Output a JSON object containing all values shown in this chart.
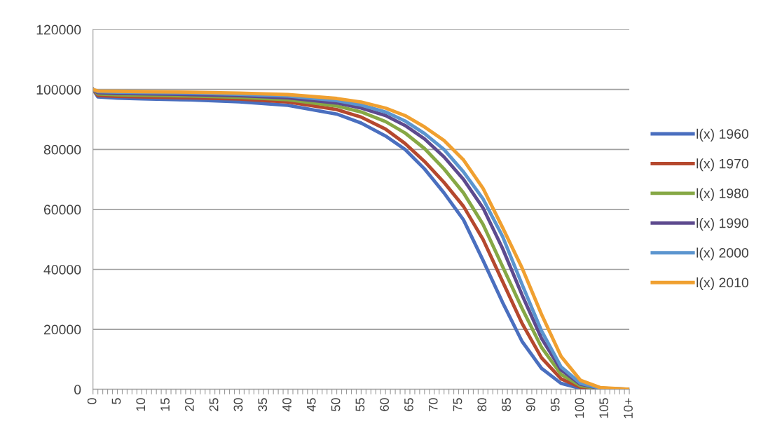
{
  "chart_data": {
    "type": "line",
    "xlim": [
      0,
      110
    ],
    "ylim": [
      0,
      120000
    ],
    "yticks": [
      0,
      20000,
      40000,
      60000,
      80000,
      100000,
      120000
    ],
    "xticks": [
      0,
      {
        "value": 1,
        "label": null
      },
      {
        "value": 2,
        "label": null
      },
      {
        "value": 3,
        "label": null
      },
      {
        "value": 4,
        "label": null
      },
      5,
      {
        "value": 6,
        "label": null
      },
      {
        "value": 7,
        "label": null
      },
      {
        "value": 8,
        "label": null
      },
      {
        "value": 9,
        "label": null
      },
      10,
      {
        "value": 11,
        "label": null
      },
      {
        "value": 12,
        "label": null
      },
      {
        "value": 13,
        "label": null
      },
      {
        "value": 14,
        "label": null
      },
      15,
      {
        "value": 16,
        "label": null
      },
      {
        "value": 17,
        "label": null
      },
      {
        "value": 18,
        "label": null
      },
      {
        "value": 19,
        "label": null
      },
      20,
      {
        "value": 21,
        "label": null
      },
      {
        "value": 22,
        "label": null
      },
      {
        "value": 23,
        "label": null
      },
      {
        "value": 24,
        "label": null
      },
      25,
      {
        "value": 26,
        "label": null
      },
      {
        "value": 27,
        "label": null
      },
      {
        "value": 28,
        "label": null
      },
      {
        "value": 29,
        "label": null
      },
      30,
      {
        "value": 31,
        "label": null
      },
      {
        "value": 32,
        "label": null
      },
      {
        "value": 33,
        "label": null
      },
      {
        "value": 34,
        "label": null
      },
      35,
      {
        "value": 36,
        "label": null
      },
      {
        "value": 37,
        "label": null
      },
      {
        "value": 38,
        "label": null
      },
      {
        "value": 39,
        "label": null
      },
      40,
      {
        "value": 41,
        "label": null
      },
      {
        "value": 42,
        "label": null
      },
      {
        "value": 43,
        "label": null
      },
      {
        "value": 44,
        "label": null
      },
      45,
      {
        "value": 46,
        "label": null
      },
      {
        "value": 47,
        "label": null
      },
      {
        "value": 48,
        "label": null
      },
      {
        "value": 49,
        "label": null
      },
      50,
      {
        "value": 51,
        "label": null
      },
      {
        "value": 52,
        "label": null
      },
      {
        "value": 53,
        "label": null
      },
      {
        "value": 54,
        "label": null
      },
      55,
      {
        "value": 56,
        "label": null
      },
      {
        "value": 57,
        "label": null
      },
      {
        "value": 58,
        "label": null
      },
      {
        "value": 59,
        "label": null
      },
      60,
      {
        "value": 61,
        "label": null
      },
      {
        "value": 62,
        "label": null
      },
      {
        "value": 63,
        "label": null
      },
      {
        "value": 64,
        "label": null
      },
      65,
      {
        "value": 66,
        "label": null
      },
      {
        "value": 67,
        "label": null
      },
      {
        "value": 68,
        "label": null
      },
      {
        "value": 69,
        "label": null
      },
      70,
      {
        "value": 71,
        "label": null
      },
      {
        "value": 72,
        "label": null
      },
      {
        "value": 73,
        "label": null
      },
      {
        "value": 74,
        "label": null
      },
      75,
      {
        "value": 76,
        "label": null
      },
      {
        "value": 77,
        "label": null
      },
      {
        "value": 78,
        "label": null
      },
      {
        "value": 79,
        "label": null
      },
      80,
      {
        "value": 81,
        "label": null
      },
      {
        "value": 82,
        "label": null
      },
      {
        "value": 83,
        "label": null
      },
      {
        "value": 84,
        "label": null
      },
      85,
      {
        "value": 86,
        "label": null
      },
      {
        "value": 87,
        "label": null
      },
      {
        "value": 88,
        "label": null
      },
      {
        "value": 89,
        "label": null
      },
      90,
      {
        "value": 91,
        "label": null
      },
      {
        "value": 92,
        "label": null
      },
      {
        "value": 93,
        "label": null
      },
      {
        "value": 94,
        "label": null
      },
      95,
      {
        "value": 96,
        "label": null
      },
      {
        "value": 97,
        "label": null
      },
      {
        "value": 98,
        "label": null
      },
      {
        "value": 99,
        "label": null
      },
      100,
      {
        "value": 101,
        "label": null
      },
      {
        "value": 102,
        "label": null
      },
      {
        "value": 103,
        "label": null
      },
      {
        "value": 104,
        "label": null
      },
      105,
      {
        "value": 106,
        "label": null
      },
      {
        "value": 107,
        "label": null
      },
      {
        "value": 108,
        "label": null
      },
      {
        "value": 109,
        "label": null
      },
      {
        "value": 110,
        "label": "10+"
      }
    ],
    "x": [
      0,
      1,
      5,
      10,
      20,
      30,
      40,
      50,
      55,
      60,
      64,
      68,
      72,
      76,
      80,
      84,
      88,
      92,
      96,
      100,
      104,
      110
    ],
    "grid": "y",
    "legend": "right",
    "marker": "none",
    "line_style": "solid",
    "series": [
      {
        "name": "l(x) 1960",
        "color": "#4a6fbf",
        "values": [
          100000,
          97500,
          97100,
          96900,
          96500,
          95900,
          94700,
          91800,
          88800,
          84500,
          80000,
          73500,
          65500,
          56500,
          43000,
          29000,
          16000,
          7000,
          2000,
          300,
          0,
          0
        ]
      },
      {
        "name": "l(x) 1970",
        "color": "#b5482e",
        "values": [
          100000,
          98000,
          97700,
          97500,
          97200,
          96800,
          95800,
          93300,
          90800,
          86800,
          82000,
          76000,
          69000,
          61000,
          50000,
          36000,
          22000,
          10500,
          3500,
          700,
          100,
          0
        ]
      },
      {
        "name": "l(x) 1980",
        "color": "#86a845",
        "values": [
          100000,
          98500,
          98200,
          98100,
          97800,
          97400,
          96600,
          94500,
          92500,
          89300,
          85500,
          80300,
          73500,
          65500,
          55000,
          41000,
          27000,
          14000,
          5000,
          1200,
          200,
          0
        ]
      },
      {
        "name": "l(x) 1990",
        "color": "#5d4a8e",
        "values": [
          100000,
          98900,
          98700,
          98600,
          98300,
          97900,
          97200,
          95500,
          93800,
          91300,
          88000,
          83500,
          77500,
          70000,
          60500,
          47000,
          31500,
          17000,
          6500,
          1700,
          300,
          0
        ]
      },
      {
        "name": "l(x) 2000",
        "color": "#5b95cf",
        "values": [
          100000,
          99300,
          99100,
          99000,
          98800,
          98400,
          97800,
          96300,
          94800,
          92500,
          89500,
          85300,
          80000,
          72500,
          63500,
          51000,
          35000,
          19500,
          7500,
          2000,
          400,
          0
        ]
      },
      {
        "name": "l(x) 2010",
        "color": "#f0a030",
        "values": [
          100000,
          99500,
          99400,
          99300,
          99100,
          98800,
          98300,
          97000,
          95800,
          93800,
          91300,
          87500,
          83000,
          76500,
          67000,
          54000,
          40500,
          25000,
          11000,
          3000,
          600,
          0
        ]
      }
    ]
  }
}
